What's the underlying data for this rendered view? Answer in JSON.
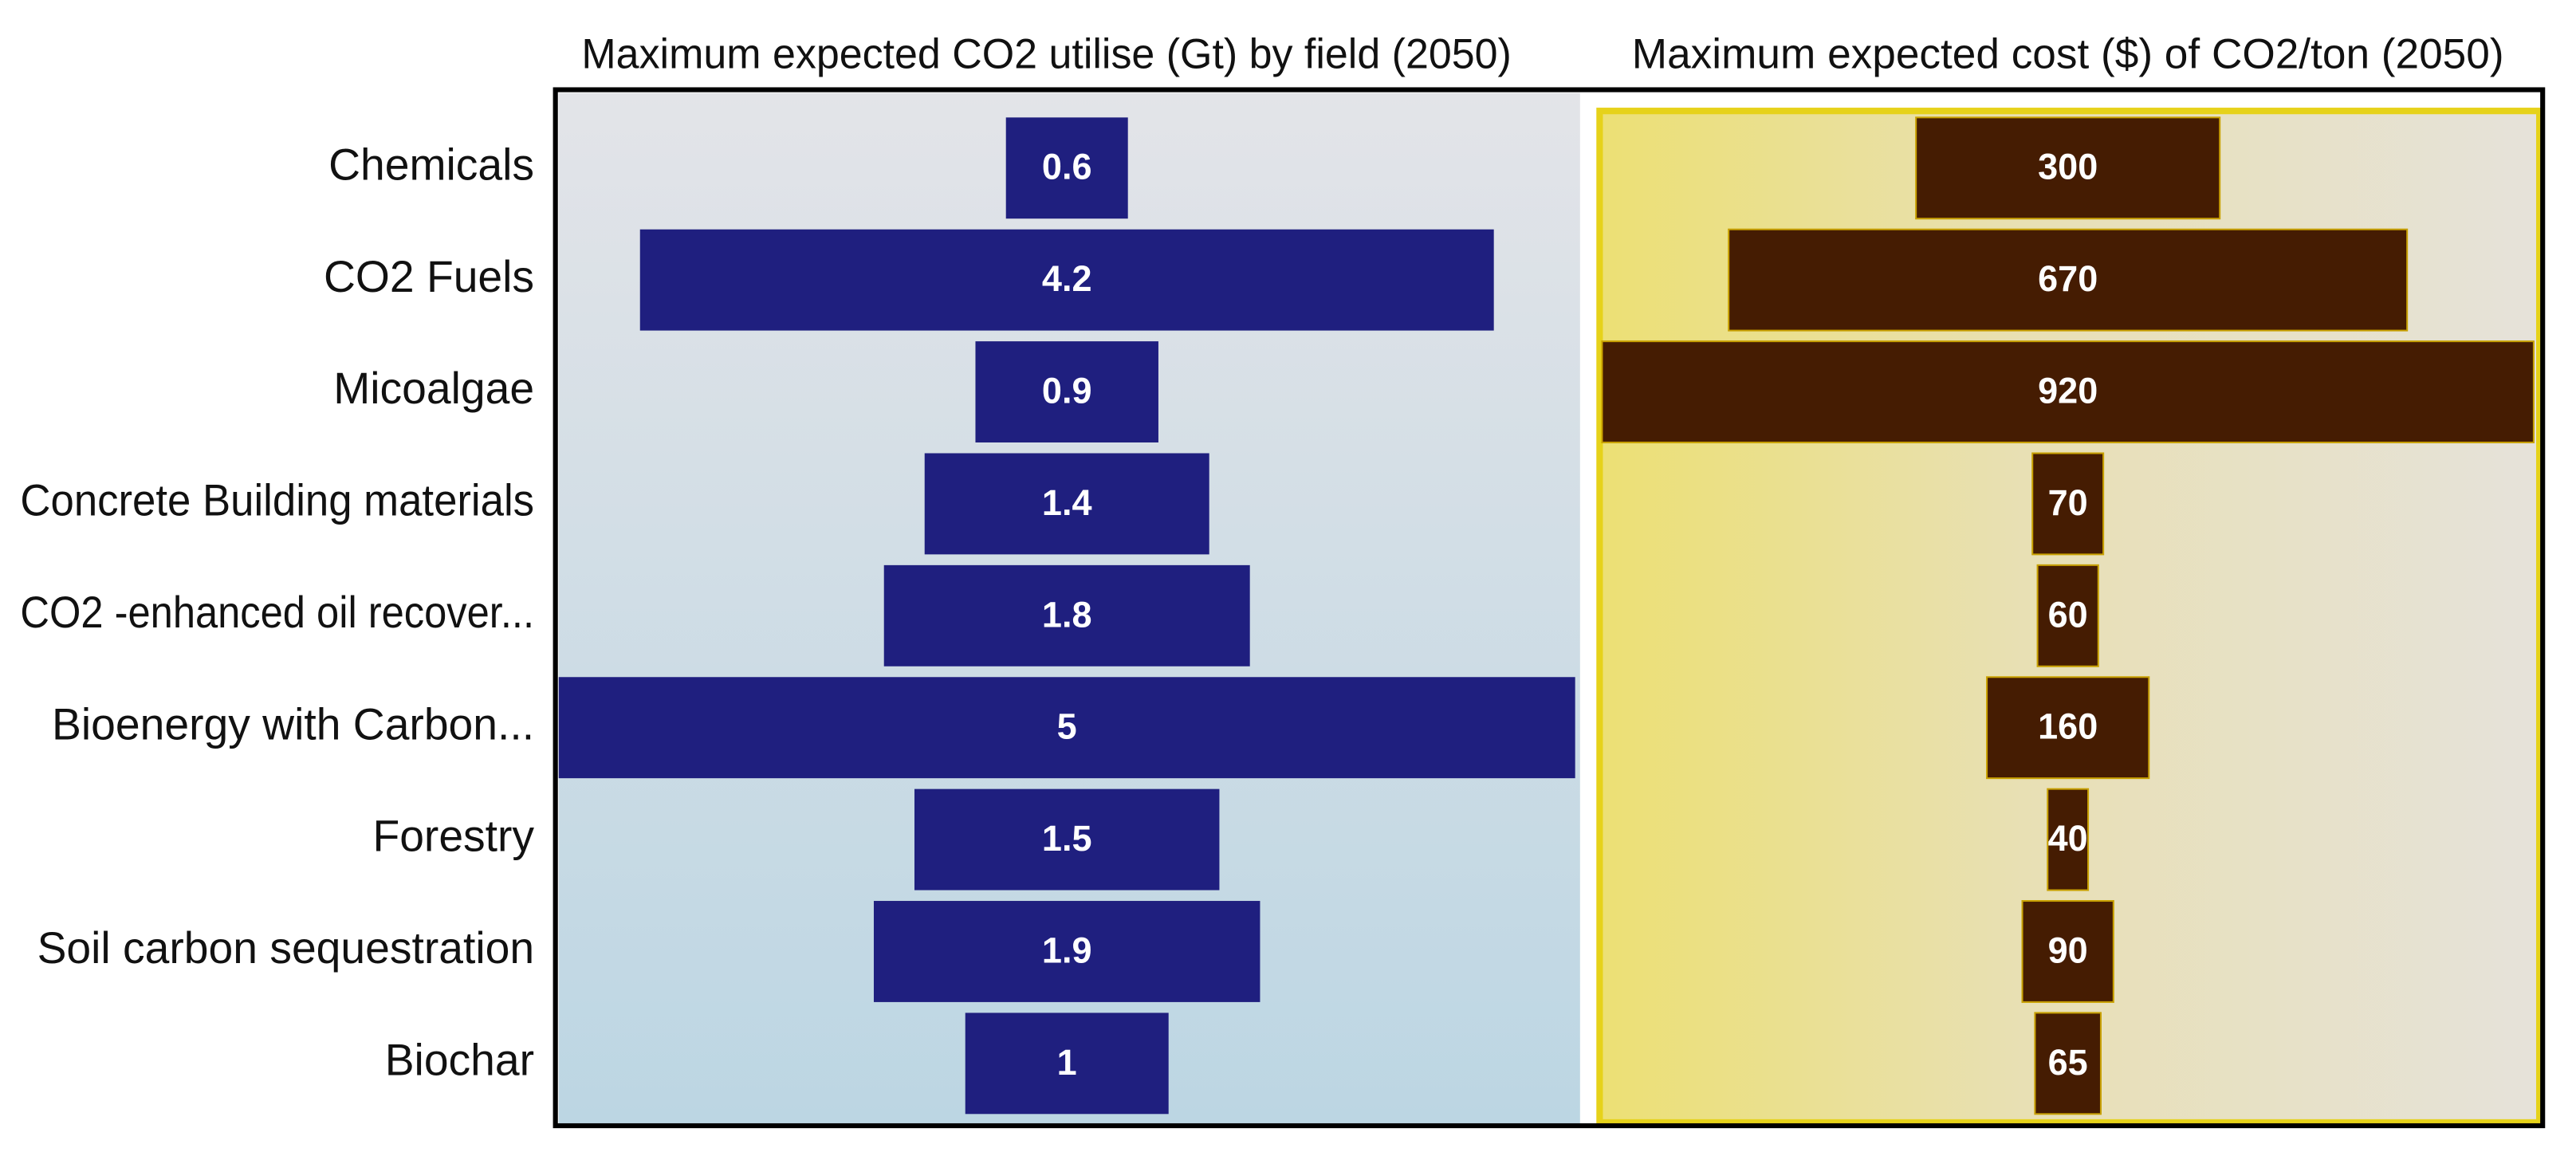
{
  "chart_data": [
    {
      "type": "bar",
      "title": "Maximum expected CO2 utilise (Gt) by field (2050)",
      "categories": [
        "Chemicals",
        "CO2 Fuels",
        "Micoalgae",
        "Concrete Building materials",
        "CO2 -enhanced oil recover...",
        "Bioenergy with Carbon...",
        "Forestry",
        "Soil carbon sequestration",
        "Biochar"
      ],
      "values": [
        0.6,
        4.2,
        0.9,
        1.4,
        1.8,
        5,
        1.5,
        1.9,
        1
      ],
      "color": "#1f1f7f"
    },
    {
      "type": "bar",
      "title": "Maximum expected cost ($) of CO2/ton (2050)",
      "values": [
        300,
        670,
        920,
        70,
        60,
        160,
        40,
        90,
        65
      ],
      "color": "#451c02"
    }
  ]
}
